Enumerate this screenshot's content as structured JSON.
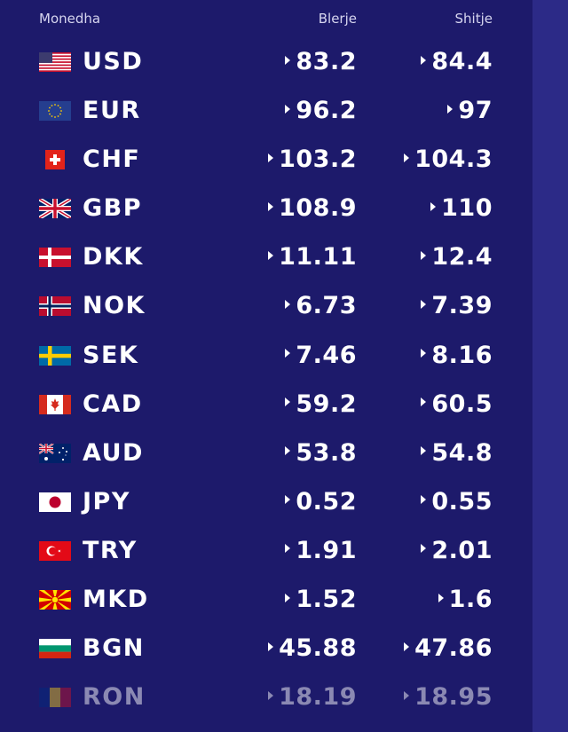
{
  "header": {
    "currency": "Monedha",
    "buy": "Blerje",
    "sell": "Shitje"
  },
  "rows": [
    {
      "code": "USD",
      "buy": "83.2",
      "sell": "84.4",
      "flag": "us-flag-icon"
    },
    {
      "code": "EUR",
      "buy": "96.2",
      "sell": "97",
      "flag": "eu-flag-icon"
    },
    {
      "code": "CHF",
      "buy": "103.2",
      "sell": "104.3",
      "flag": "ch-flag-icon"
    },
    {
      "code": "GBP",
      "buy": "108.9",
      "sell": "110",
      "flag": "gb-flag-icon"
    },
    {
      "code": "DKK",
      "buy": "11.11",
      "sell": "12.4",
      "flag": "dk-flag-icon"
    },
    {
      "code": "NOK",
      "buy": "6.73",
      "sell": "7.39",
      "flag": "no-flag-icon"
    },
    {
      "code": "SEK",
      "buy": "7.46",
      "sell": "8.16",
      "flag": "se-flag-icon"
    },
    {
      "code": "CAD",
      "buy": "59.2",
      "sell": "60.5",
      "flag": "ca-flag-icon"
    },
    {
      "code": "AUD",
      "buy": "53.8",
      "sell": "54.8",
      "flag": "au-flag-icon"
    },
    {
      "code": "JPY",
      "buy": "0.52",
      "sell": "0.55",
      "flag": "jp-flag-icon"
    },
    {
      "code": "TRY",
      "buy": "1.91",
      "sell": "2.01",
      "flag": "tr-flag-icon"
    },
    {
      "code": "MKD",
      "buy": "1.52",
      "sell": "1.6",
      "flag": "mk-flag-icon"
    },
    {
      "code": "BGN",
      "buy": "45.88",
      "sell": "47.86",
      "flag": "bg-flag-icon"
    },
    {
      "code": "RON",
      "buy": "18.19",
      "sell": "18.95",
      "flag": "ro-flag-icon"
    }
  ],
  "colors": {
    "background": "#1d1a6b",
    "strip": "#2c2a87",
    "text": "#ffffff"
  }
}
